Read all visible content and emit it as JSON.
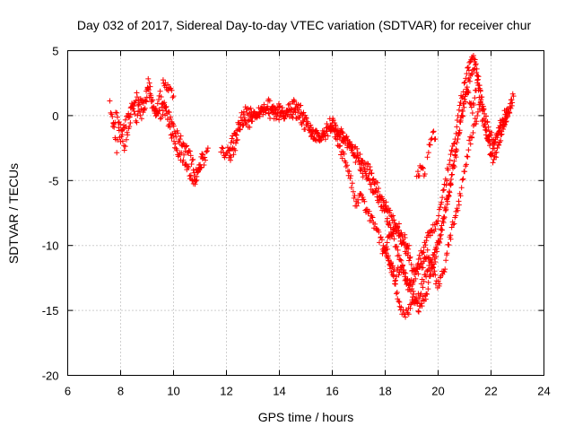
{
  "chart_data": {
    "type": "scatter",
    "title": "Day 032 of 2017, Sidereal Day-to-day VTEC variation (SDTVAR) for receiver chur",
    "xlabel": "GPS time / hours",
    "ylabel": "SDTVAR / TECUs",
    "xlim": [
      6,
      24
    ],
    "ylim": [
      -20,
      5
    ],
    "xticks": [
      6,
      8,
      10,
      12,
      14,
      16,
      18,
      20,
      22,
      24
    ],
    "yticks": [
      -20,
      -15,
      -10,
      -5,
      0,
      5
    ],
    "grid": true,
    "marker": "+",
    "color": "#ff0000",
    "series": [
      {
        "name": "SDTVAR",
        "tracks": [
          [
            [
              7.6,
              0.8
            ],
            [
              7.75,
              -1.0
            ],
            [
              7.85,
              -2.5
            ],
            [
              7.95,
              -0.5
            ],
            [
              8.05,
              -1.5
            ],
            [
              8.15,
              -2.5
            ],
            [
              8.3,
              -1.0
            ],
            [
              8.45,
              1.0
            ],
            [
              8.6,
              -0.5
            ],
            [
              8.75,
              1.5
            ],
            [
              8.9,
              0.5
            ],
            [
              9.05,
              2.5
            ],
            [
              9.2,
              1.0
            ],
            [
              9.35,
              0.0
            ],
            [
              9.5,
              1.5
            ],
            [
              9.65,
              0.5
            ],
            [
              9.8,
              0.0
            ],
            [
              9.95,
              -0.5
            ],
            [
              10.1,
              -1.5
            ],
            [
              10.3,
              -2.0
            ],
            [
              10.5,
              -2.5
            ],
            [
              10.7,
              -3.5
            ],
            [
              10.85,
              -4.5
            ],
            [
              11.0,
              -4.0
            ],
            [
              11.15,
              -3.5
            ],
            [
              11.3,
              -2.5
            ]
          ],
          [
            [
              7.7,
              -0.5
            ],
            [
              7.85,
              0.0
            ],
            [
              8.0,
              -2.0
            ],
            [
              8.2,
              -0.5
            ],
            [
              8.4,
              0.5
            ],
            [
              8.6,
              1.5
            ],
            [
              8.8,
              0.0
            ],
            [
              9.0,
              2.0
            ],
            [
              9.15,
              1.5
            ],
            [
              9.3,
              0.5
            ],
            [
              9.5,
              0.0
            ],
            [
              9.7,
              1.0
            ],
            [
              9.9,
              -1.5
            ],
            [
              10.1,
              -2.5
            ],
            [
              10.25,
              -3.0
            ],
            [
              10.45,
              -3.5
            ],
            [
              10.6,
              -4.5
            ],
            [
              10.75,
              -5.5
            ],
            [
              10.9,
              -4.5
            ],
            [
              11.1,
              -3.0
            ]
          ],
          [
            [
              9.6,
              2.5
            ],
            [
              9.75,
              2.2
            ],
            [
              9.9,
              2.0
            ],
            [
              10.0,
              1.5
            ]
          ],
          [
            [
              11.8,
              -2.5
            ],
            [
              12.0,
              -3.0
            ],
            [
              12.2,
              -2.0
            ],
            [
              12.4,
              -1.0
            ],
            [
              12.6,
              0.0
            ],
            [
              12.8,
              0.5
            ],
            [
              13.0,
              0.0
            ],
            [
              13.2,
              0.0
            ],
            [
              13.4,
              0.5
            ],
            [
              13.6,
              1.0
            ],
            [
              13.8,
              0.5
            ],
            [
              14.0,
              0.5
            ],
            [
              14.2,
              0.0
            ],
            [
              14.4,
              0.8
            ],
            [
              14.6,
              1.0
            ],
            [
              14.8,
              0.5
            ],
            [
              15.0,
              -0.5
            ],
            [
              15.2,
              -1.0
            ],
            [
              15.4,
              -1.5
            ],
            [
              15.6,
              -1.5
            ],
            [
              15.8,
              -1.0
            ],
            [
              16.0,
              -0.5
            ],
            [
              16.2,
              -1.0
            ],
            [
              16.4,
              -1.5
            ],
            [
              16.6,
              -2.0
            ],
            [
              16.8,
              -3.0
            ],
            [
              17.0,
              -3.5
            ],
            [
              17.2,
              -4.5
            ],
            [
              17.4,
              -5.0
            ],
            [
              17.6,
              -6.0
            ],
            [
              17.8,
              -6.5
            ],
            [
              18.0,
              -7.5
            ],
            [
              18.2,
              -8.5
            ],
            [
              18.4,
              -10.0
            ],
            [
              18.6,
              -11.5
            ],
            [
              18.8,
              -13.0
            ],
            [
              19.0,
              -13.5
            ],
            [
              19.2,
              -14.5
            ],
            [
              19.4,
              -13.0
            ],
            [
              19.6,
              -12.0
            ],
            [
              19.8,
              -11.0
            ],
            [
              20.0,
              -10.0
            ],
            [
              20.2,
              -8.0
            ],
            [
              20.4,
              -6.0
            ],
            [
              20.6,
              -3.5
            ],
            [
              20.8,
              -1.0
            ],
            [
              21.0,
              1.0
            ],
            [
              21.2,
              3.0
            ],
            [
              21.4,
              4.0
            ],
            [
              21.6,
              1.5
            ],
            [
              21.8,
              -1.0
            ],
            [
              22.0,
              -3.0
            ],
            [
              22.2,
              -1.5
            ],
            [
              22.4,
              -1.0
            ],
            [
              22.6,
              0.0
            ],
            [
              22.8,
              1.0
            ]
          ],
          [
            [
              12.1,
              -3.5
            ],
            [
              12.3,
              -2.5
            ],
            [
              12.5,
              -1.0
            ],
            [
              12.7,
              -0.5
            ],
            [
              12.9,
              -0.5
            ],
            [
              13.1,
              0.2
            ],
            [
              13.5,
              0.3
            ],
            [
              13.9,
              0.0
            ],
            [
              14.3,
              0.3
            ],
            [
              14.7,
              0.0
            ],
            [
              15.1,
              -1.2
            ],
            [
              15.5,
              -1.8
            ],
            [
              15.9,
              -1.2
            ],
            [
              16.1,
              -1.5
            ],
            [
              16.3,
              -2.5
            ],
            [
              16.5,
              -3.5
            ],
            [
              16.7,
              -5.0
            ],
            [
              16.9,
              -7.0
            ],
            [
              17.1,
              -6.0
            ],
            [
              17.3,
              -7.5
            ],
            [
              17.5,
              -8.0
            ],
            [
              17.7,
              -9.0
            ],
            [
              17.9,
              -10.0
            ],
            [
              18.1,
              -11.0
            ],
            [
              18.3,
              -12.0
            ],
            [
              18.5,
              -14.5
            ],
            [
              18.7,
              -15.5
            ],
            [
              18.9,
              -15.0
            ],
            [
              19.1,
              -14.0
            ],
            [
              19.3,
              -15.0
            ],
            [
              19.5,
              -14.0
            ],
            [
              19.7,
              -12.5
            ],
            [
              19.9,
              -11.0
            ],
            [
              20.1,
              -9.0
            ],
            [
              20.3,
              -7.0
            ],
            [
              20.5,
              -5.0
            ],
            [
              20.7,
              -2.5
            ],
            [
              20.9,
              0.0
            ],
            [
              21.1,
              2.0
            ],
            [
              21.3,
              0.5
            ],
            [
              21.5,
              2.5
            ],
            [
              21.7,
              -0.5
            ],
            [
              21.9,
              -2.0
            ],
            [
              22.1,
              -3.5
            ],
            [
              22.3,
              -2.0
            ],
            [
              22.5,
              -0.5
            ],
            [
              22.7,
              0.5
            ],
            [
              22.85,
              1.5
            ]
          ],
          [
            [
              15.9,
              -0.5
            ],
            [
              16.1,
              -0.8
            ],
            [
              16.3,
              -1.5
            ],
            [
              16.5,
              -2.0
            ],
            [
              16.7,
              -2.5
            ],
            [
              16.9,
              -2.8
            ],
            [
              17.1,
              -3.5
            ],
            [
              17.3,
              -4.0
            ],
            [
              17.5,
              -4.5
            ],
            [
              17.7,
              -5.5
            ],
            [
              17.9,
              -6.5
            ],
            [
              18.1,
              -7.0
            ],
            [
              18.3,
              -8.0
            ],
            [
              18.5,
              -9.0
            ],
            [
              18.7,
              -10.0
            ],
            [
              18.9,
              -11.0
            ],
            [
              19.1,
              -12.0
            ],
            [
              19.3,
              -11.0
            ],
            [
              19.5,
              -10.0
            ],
            [
              19.7,
              -9.0
            ],
            [
              19.9,
              -8.5
            ],
            [
              20.1,
              -7.0
            ],
            [
              20.3,
              -5.0
            ],
            [
              20.5,
              -3.0
            ],
            [
              20.7,
              -1.0
            ],
            [
              20.9,
              1.5
            ],
            [
              21.1,
              3.5
            ],
            [
              21.3,
              4.5
            ],
            [
              21.5,
              3.0
            ],
            [
              21.7,
              0.5
            ],
            [
              21.9,
              -1.0
            ],
            [
              22.1,
              -2.0
            ],
            [
              22.3,
              -1.0
            ],
            [
              22.6,
              0.5
            ]
          ],
          [
            [
              18.0,
              -10.0
            ],
            [
              18.2,
              -11.5
            ],
            [
              18.4,
              -12.5
            ],
            [
              18.6,
              -11.5
            ],
            [
              18.8,
              -12.5
            ],
            [
              19.0,
              -13.0
            ],
            [
              19.2,
              -12.0
            ],
            [
              19.4,
              -11.5
            ],
            [
              19.6,
              -10.5
            ],
            [
              19.8,
              -12.0
            ],
            [
              20.0,
              -13.0
            ],
            [
              20.2,
              -12.0
            ],
            [
              20.4,
              -10.0
            ],
            [
              20.6,
              -8.0
            ],
            [
              20.8,
              -6.5
            ],
            [
              21.0,
              -4.0
            ],
            [
              21.2,
              -2.0
            ],
            [
              21.4,
              -0.5
            ],
            [
              21.6,
              1.0
            ]
          ],
          [
            [
              17.9,
              -10.5
            ],
            [
              18.1,
              -9.5
            ],
            [
              18.3,
              -9.0
            ],
            [
              18.5,
              -8.5
            ],
            [
              18.7,
              -9.5
            ],
            [
              18.9,
              -10.0
            ]
          ],
          [
            [
              19.2,
              -4.5
            ],
            [
              19.35,
              -4.2
            ],
            [
              19.5,
              -4.5
            ]
          ],
          [
            [
              19.6,
              -3.0
            ],
            [
              19.7,
              -2.0
            ],
            [
              19.8,
              -1.5
            ],
            [
              19.9,
              -1.8
            ]
          ]
        ]
      }
    ]
  }
}
